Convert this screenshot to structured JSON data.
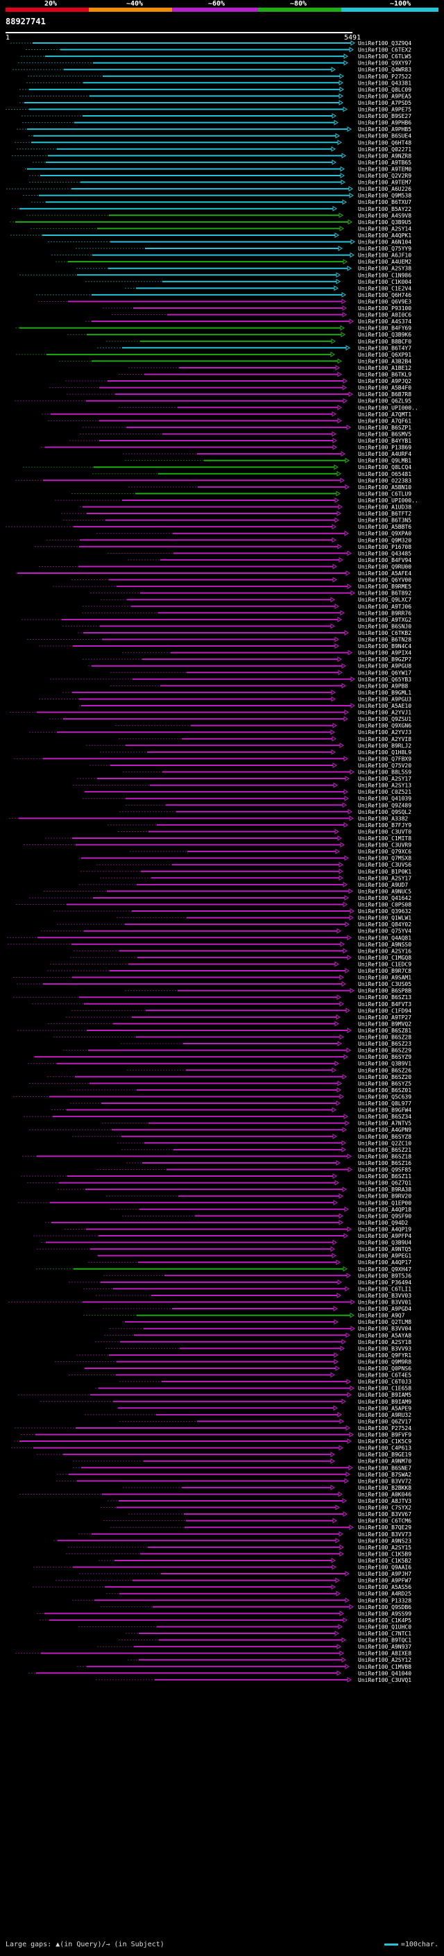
{
  "header": {
    "scale_labels": [
      "20%",
      "~40%",
      "~60%",
      "~80%",
      "~100%"
    ],
    "scale_colors": [
      "#e0001a",
      "#f28e00",
      "#b520cc",
      "#1fae12",
      "#23c4d8"
    ],
    "sequence_id": "88927741",
    "axis_start": "1",
    "axis_end": "5491"
  },
  "colors": {
    "cyan": "#23c4d8",
    "green": "#1fae12",
    "magenta": "#c21cc4",
    "red": "#e0001a",
    "axis": "#ffffff"
  },
  "legend": {
    "text": "Large gaps: ▲(in Query)/→ (in Subject)",
    "scale_text": "=100char."
  },
  "hits": [
    {
      "label": "UniRef100_Q3Z9Q4",
      "color": "cyan"
    },
    {
      "label": "UniRef100_C6TEX2",
      "color": "cyan"
    },
    {
      "label": "UniRef100_C6TLW5",
      "color": "cyan"
    },
    {
      "label": "UniRef100_Q9XY97",
      "color": "cyan"
    },
    {
      "label": "UniRef100_Q4WR83",
      "color": "cyan"
    },
    {
      "label": "UniRef100_P27522",
      "color": "cyan"
    },
    {
      "label": "UniRef100_Q43381",
      "color": "cyan"
    },
    {
      "label": "UniRef100_Q8LC09",
      "color": "cyan"
    },
    {
      "label": "UniRef100_A9PEA5",
      "color": "cyan"
    },
    {
      "label": "UniRef100_A7PSD5",
      "color": "cyan"
    },
    {
      "label": "UniRef100_A9PE75",
      "color": "cyan"
    },
    {
      "label": "UniRef100_B9SE27",
      "color": "cyan"
    },
    {
      "label": "UniRef100_A9PHB6",
      "color": "cyan"
    },
    {
      "label": "UniRef100_A9PHB5",
      "color": "cyan"
    },
    {
      "label": "UniRef100_B6SUE4",
      "color": "cyan"
    },
    {
      "label": "UniRef100_Q6HT48",
      "color": "cyan"
    },
    {
      "label": "UniRef100_Q02271",
      "color": "cyan"
    },
    {
      "label": "UniRef100_A9NZR8",
      "color": "cyan"
    },
    {
      "label": "UniRef100_A9TB65",
      "color": "cyan"
    },
    {
      "label": "UniRef100_A9TEM0",
      "color": "cyan"
    },
    {
      "label": "UniRef100_Q2V2R9",
      "color": "cyan"
    },
    {
      "label": "UniRef100_A9TEM7",
      "color": "cyan"
    },
    {
      "label": "UniRef100_A6U226",
      "color": "cyan"
    },
    {
      "label": "UniRef100_Q9M538",
      "color": "cyan"
    },
    {
      "label": "UniRef100_B6TXU7",
      "color": "cyan"
    },
    {
      "label": "UniRef100_B5AY22",
      "color": "cyan"
    },
    {
      "label": "UniRef100_A4S9V8",
      "color": "green"
    },
    {
      "label": "UniRef100_Q3B9U5",
      "color": "green"
    },
    {
      "label": "UniRef100_A2SY14",
      "color": "green"
    },
    {
      "label": "UniRef100_A4QPK1",
      "color": "cyan"
    },
    {
      "label": "UniRef100_A6N104",
      "color": "cyan"
    },
    {
      "label": "UniRef100_Q75YY9",
      "color": "cyan"
    },
    {
      "label": "UniRef100_A6JF10",
      "color": "cyan"
    },
    {
      "label": "UniRef100_A4UEM2",
      "color": "green"
    },
    {
      "label": "UniRef100_A2SY38",
      "color": "cyan"
    },
    {
      "label": "UniRef100_C1N986",
      "color": "cyan"
    },
    {
      "label": "UniRef100_C1K004",
      "color": "cyan"
    },
    {
      "label": "UniRef100_C1E2V4",
      "color": "cyan"
    },
    {
      "label": "UniRef100_Q6H746",
      "color": "cyan"
    },
    {
      "label": "UniRef100_Q6V9E3",
      "color": "magenta"
    },
    {
      "label": "UniRef100_P93100",
      "color": "magenta"
    },
    {
      "label": "UniRef100_A0I0C6",
      "color": "magenta"
    },
    {
      "label": "UniRef100_A4S374",
      "color": "magenta"
    },
    {
      "label": "UniRef100_B4FY69",
      "color": "green"
    },
    {
      "label": "UniRef100_Q3B9K6",
      "color": "green"
    },
    {
      "label": "UniRef100_B8BCF0",
      "color": "green"
    },
    {
      "label": "UniRef100_B6T4Y7",
      "color": "cyan"
    },
    {
      "label": "UniRef100_Q6XP91",
      "color": "green"
    },
    {
      "label": "UniRef100_A3B2B4",
      "color": "green"
    },
    {
      "label": "UniRef100_A1BE12",
      "color": "magenta"
    },
    {
      "label": "UniRef100_B6TKL9",
      "color": "magenta"
    },
    {
      "label": "UniRef100_A9PJQ2",
      "color": "magenta"
    },
    {
      "label": "UniRef100_A5B4F0",
      "color": "magenta"
    },
    {
      "label": "UniRef100_B6B7R8",
      "color": "magenta"
    },
    {
      "label": "UniRef100_Q6ZL95",
      "color": "magenta"
    },
    {
      "label": "UniRef100_UPI000..",
      "color": "magenta"
    },
    {
      "label": "UniRef100_A7QMT1",
      "color": "magenta"
    },
    {
      "label": "UniRef100_A7QF61",
      "color": "magenta"
    },
    {
      "label": "UniRef100_B6SZP1",
      "color": "magenta"
    },
    {
      "label": "UniRef100_B6SMV5",
      "color": "magenta"
    },
    {
      "label": "UniRef100_B4YYB1",
      "color": "magenta"
    },
    {
      "label": "UniRef100_P13869",
      "color": "magenta"
    },
    {
      "label": "UniRef100_A4URF4",
      "color": "magenta"
    },
    {
      "label": "UniRef100_Q9LMB1",
      "color": "green"
    },
    {
      "label": "UniRef100_Q8LCQ4",
      "color": "green"
    },
    {
      "label": "UniRef100_O65481",
      "color": "green"
    },
    {
      "label": "UniRef100_O22383",
      "color": "magenta"
    },
    {
      "label": "UniRef100_A5BN10",
      "color": "magenta"
    },
    {
      "label": "UniRef100_C6TLU9",
      "color": "green"
    },
    {
      "label": "UniRef100_UPI000..",
      "color": "magenta"
    },
    {
      "label": "UniRef100_A1UD38",
      "color": "magenta"
    },
    {
      "label": "UniRef100_B6TFT2",
      "color": "magenta"
    },
    {
      "label": "UniRef100_B6T3N5",
      "color": "magenta"
    },
    {
      "label": "UniRef100_A5BBT6",
      "color": "magenta"
    },
    {
      "label": "UniRef100_Q9XPA0",
      "color": "magenta"
    },
    {
      "label": "UniRef100_Q9M320",
      "color": "magenta"
    },
    {
      "label": "UniRef100_P16708",
      "color": "magenta"
    },
    {
      "label": "UniRef100_Q43485",
      "color": "magenta"
    },
    {
      "label": "UniRef100_B4FV94",
      "color": "magenta"
    },
    {
      "label": "UniRef100_Q9RU00",
      "color": "magenta"
    },
    {
      "label": "UniRef100_A5AFE4",
      "color": "magenta"
    },
    {
      "label": "UniRef100_Q6YV00",
      "color": "magenta"
    },
    {
      "label": "UniRef100_B9RME5",
      "color": "magenta"
    },
    {
      "label": "UniRef100_B6T892",
      "color": "magenta"
    },
    {
      "label": "UniRef100_Q9LXC7",
      "color": "magenta"
    },
    {
      "label": "UniRef100_A9TJ06",
      "color": "magenta"
    },
    {
      "label": "UniRef100_B9RR76",
      "color": "magenta"
    },
    {
      "label": "UniRef100_A9TXG2",
      "color": "magenta"
    },
    {
      "label": "UniRef100_B6SNJ0",
      "color": "magenta"
    },
    {
      "label": "UniRef100_C6TKB2",
      "color": "magenta"
    },
    {
      "label": "UniRef100_B6TN28",
      "color": "magenta"
    },
    {
      "label": "UniRef100_B9N4C4",
      "color": "magenta"
    },
    {
      "label": "UniRef100_A9PIX4",
      "color": "magenta"
    },
    {
      "label": "UniRef100_B9GZP7",
      "color": "magenta"
    },
    {
      "label": "UniRef100_A9PGU8",
      "color": "magenta"
    },
    {
      "label": "UniRef100_Q6YW17",
      "color": "magenta"
    },
    {
      "label": "UniRef100_Q65YB3",
      "color": "magenta"
    },
    {
      "label": "UniRef100_A9PB8",
      "color": "magenta"
    },
    {
      "label": "UniRef100_B9GML1",
      "color": "magenta"
    },
    {
      "label": "UniRef100_A9PGU3",
      "color": "magenta"
    },
    {
      "label": "UniRef100_A5AE10",
      "color": "magenta"
    },
    {
      "label": "UniRef100_A2YVJ1",
      "color": "magenta"
    },
    {
      "label": "UniRef100_Q9ZSU1",
      "color": "magenta"
    },
    {
      "label": "UniRef100_Q9XGN6",
      "color": "magenta"
    },
    {
      "label": "UniRef100_A2YVJ3",
      "color": "magenta"
    },
    {
      "label": "UniRef100_A2YVI8",
      "color": "magenta"
    },
    {
      "label": "UniRef100_B9RLJ2",
      "color": "magenta"
    },
    {
      "label": "UniRef100_Q1H8L9",
      "color": "magenta"
    },
    {
      "label": "UniRef100_Q7FBX9",
      "color": "magenta"
    },
    {
      "label": "UniRef100_Q75V20",
      "color": "magenta"
    },
    {
      "label": "UniRef100_B8L5S9",
      "color": "magenta"
    },
    {
      "label": "UniRef100_A2SY17",
      "color": "magenta"
    },
    {
      "label": "UniRef100_A2SY13",
      "color": "magenta"
    },
    {
      "label": "UniRef100_C0Z521",
      "color": "magenta"
    },
    {
      "label": "UniRef100_Q41039",
      "color": "magenta"
    },
    {
      "label": "UniRef100_Q9Z489",
      "color": "magenta"
    },
    {
      "label": "UniRef100_Q9SQL2",
      "color": "magenta"
    },
    {
      "label": "UniRef100_A3382",
      "color": "magenta"
    },
    {
      "label": "UniRef100_B7FJY9",
      "color": "magenta"
    },
    {
      "label": "UniRef100_C3UVT0",
      "color": "magenta"
    },
    {
      "label": "UniRef100_C1MIT8",
      "color": "magenta"
    },
    {
      "label": "UniRef100_C3UVR9",
      "color": "magenta"
    },
    {
      "label": "UniRef100_Q79XC6",
      "color": "magenta"
    },
    {
      "label": "UniRef100_Q7MSX8",
      "color": "magenta"
    },
    {
      "label": "UniRef100_C3UVS6",
      "color": "magenta"
    },
    {
      "label": "UniRef100_B1P0K1",
      "color": "magenta"
    },
    {
      "label": "UniRef100_A2SY17",
      "color": "magenta"
    },
    {
      "label": "UniRef100_A9UD7",
      "color": "magenta"
    },
    {
      "label": "UniRef100_A9NUC5",
      "color": "magenta"
    },
    {
      "label": "UniRef100_Q41642",
      "color": "magenta"
    },
    {
      "label": "UniRef100_C0PS08",
      "color": "magenta"
    },
    {
      "label": "UniRef100_Q39632",
      "color": "magenta"
    },
    {
      "label": "UniRef100_Q1WLW1",
      "color": "magenta"
    },
    {
      "label": "UniRef100_Q84Y02",
      "color": "magenta"
    },
    {
      "label": "UniRef100_Q75YV4",
      "color": "magenta"
    },
    {
      "label": "UniRef100_Q4AQ81",
      "color": "magenta"
    },
    {
      "label": "UniRef100_A9NSS0",
      "color": "magenta"
    },
    {
      "label": "UniRef100_A2SY16",
      "color": "magenta"
    },
    {
      "label": "UniRef100_C1MGQ8",
      "color": "magenta"
    },
    {
      "label": "UniRef100_C1EDC9",
      "color": "magenta"
    },
    {
      "label": "UniRef100_B9R7C8",
      "color": "magenta"
    },
    {
      "label": "UniRef100_A9SAM1",
      "color": "magenta"
    },
    {
      "label": "UniRef100_C3US05",
      "color": "magenta"
    },
    {
      "label": "UniRef100_B6SP8B",
      "color": "magenta"
    },
    {
      "label": "UniRef100_B6SZ13",
      "color": "magenta"
    },
    {
      "label": "UniRef100_B4FVT3",
      "color": "magenta"
    },
    {
      "label": "UniRef100_C1FD94",
      "color": "magenta"
    },
    {
      "label": "UniRef100_A9TP27",
      "color": "magenta"
    },
    {
      "label": "UniRef100_B9MVQ2",
      "color": "magenta"
    },
    {
      "label": "UniRef100_B6SZ81",
      "color": "magenta"
    },
    {
      "label": "UniRef100_B6SZ28",
      "color": "magenta"
    },
    {
      "label": "UniRef100_B6SZ23",
      "color": "magenta"
    },
    {
      "label": "UniRef100_B6SZ29",
      "color": "magenta"
    },
    {
      "label": "UniRef100_B6SYZ9",
      "color": "magenta"
    },
    {
      "label": "UniRef100_Q3B9V1",
      "color": "magenta"
    },
    {
      "label": "UniRef100_B6SZ26",
      "color": "magenta"
    },
    {
      "label": "UniRef100_B6SZ20",
      "color": "magenta"
    },
    {
      "label": "UniRef100_B6SYZ5",
      "color": "magenta"
    },
    {
      "label": "UniRef100_B6SZ01",
      "color": "magenta"
    },
    {
      "label": "UniRef100_Q5C639",
      "color": "magenta"
    },
    {
      "label": "UniRef100_Q8L977",
      "color": "magenta"
    },
    {
      "label": "UniRef100_B9GFW4",
      "color": "magenta"
    },
    {
      "label": "UniRef100_B6SZ34",
      "color": "magenta"
    },
    {
      "label": "UniRef100_A7NTV5",
      "color": "magenta"
    },
    {
      "label": "UniRef100_A4GPN9",
      "color": "magenta"
    },
    {
      "label": "UniRef100_B6SYZ8",
      "color": "magenta"
    },
    {
      "label": "UniRef100_Q2ZC10",
      "color": "magenta"
    },
    {
      "label": "UniRef100_B6SZ21",
      "color": "magenta"
    },
    {
      "label": "UniRef100_B6SZ18",
      "color": "magenta"
    },
    {
      "label": "UniRef100_B6SZ16",
      "color": "magenta"
    },
    {
      "label": "UniRef100_Q9SF85",
      "color": "magenta"
    },
    {
      "label": "UniRef100_B6SZ11",
      "color": "magenta"
    },
    {
      "label": "UniRef100_Q6Z7Q1",
      "color": "magenta"
    },
    {
      "label": "UniRef100_B9RA38",
      "color": "magenta"
    },
    {
      "label": "UniRef100_B9RV20",
      "color": "magenta"
    },
    {
      "label": "UniRef100_Q1EP00",
      "color": "magenta"
    },
    {
      "label": "UniRef100_A4QP18",
      "color": "magenta"
    },
    {
      "label": "UniRef100_Q9SF90",
      "color": "magenta"
    },
    {
      "label": "UniRef100_Q94D2",
      "color": "magenta"
    },
    {
      "label": "UniRef100_A4QP19",
      "color": "magenta"
    },
    {
      "label": "UniRef100_A9PFP4",
      "color": "magenta"
    },
    {
      "label": "UniRef100_Q3B9U4",
      "color": "magenta"
    },
    {
      "label": "UniRef100_A9NTQ5",
      "color": "magenta"
    },
    {
      "label": "UniRef100_A9PEG1",
      "color": "magenta"
    },
    {
      "label": "UniRef100_A4QP17",
      "color": "magenta"
    },
    {
      "label": "UniRef100_Q9XH47",
      "color": "green"
    },
    {
      "label": "UniRef100_B9T5J6",
      "color": "magenta"
    },
    {
      "label": "UniRef100_P36494",
      "color": "magenta"
    },
    {
      "label": "UniRef100_C6TLI1",
      "color": "magenta"
    },
    {
      "label": "UniRef100_B3VV03",
      "color": "magenta"
    },
    {
      "label": "UniRef100_B3VV01",
      "color": "magenta"
    },
    {
      "label": "UniRef100_A9PGD4",
      "color": "magenta"
    },
    {
      "label": "UniRef100_A9Q7",
      "color": "green"
    },
    {
      "label": "UniRef100_Q2TLM8",
      "color": "magenta"
    },
    {
      "label": "UniRef100_B3VV04",
      "color": "magenta"
    },
    {
      "label": "UniRef100_A5AYA8",
      "color": "magenta"
    },
    {
      "label": "UniRef100_A2SY18",
      "color": "magenta"
    },
    {
      "label": "UniRef100_B3VV93",
      "color": "magenta"
    },
    {
      "label": "UniRef100_Q9FYR1",
      "color": "magenta"
    },
    {
      "label": "UniRef100_Q9M9R8",
      "color": "magenta"
    },
    {
      "label": "UniRef100_Q0PNS6",
      "color": "magenta"
    },
    {
      "label": "UniRef100_C6T4E5",
      "color": "magenta"
    },
    {
      "label": "UniRef100_C6T0J3",
      "color": "magenta"
    },
    {
      "label": "UniRef100_C1E658",
      "color": "magenta"
    },
    {
      "label": "UniRef100_B9IAM5",
      "color": "magenta"
    },
    {
      "label": "UniRef100_B9IAM9",
      "color": "magenta"
    },
    {
      "label": "UniRef100_A5APE9",
      "color": "magenta"
    },
    {
      "label": "UniRef100_A9RU32",
      "color": "magenta"
    },
    {
      "label": "UniRef100_Q6ZV17",
      "color": "magenta"
    },
    {
      "label": "UniRef100_P27524",
      "color": "magenta"
    },
    {
      "label": "UniRef100_B9FVF9",
      "color": "magenta"
    },
    {
      "label": "UniRef100_C1K5C9",
      "color": "magenta"
    },
    {
      "label": "UniRef100_C4P613",
      "color": "magenta"
    },
    {
      "label": "UniRef100_B9GE19",
      "color": "magenta"
    },
    {
      "label": "UniRef100_A9NM70",
      "color": "magenta"
    },
    {
      "label": "UniRef100_B6SNE7",
      "color": "magenta"
    },
    {
      "label": "UniRef100_B7SWA2",
      "color": "magenta"
    },
    {
      "label": "UniRef100_B3VV72",
      "color": "magenta"
    },
    {
      "label": "UniRef100_B2BKK8",
      "color": "magenta"
    },
    {
      "label": "UniRef100_A0K046",
      "color": "magenta"
    },
    {
      "label": "UniRef100_A8JTV3",
      "color": "magenta"
    },
    {
      "label": "UniRef100_C7SYX2",
      "color": "magenta"
    },
    {
      "label": "UniRef100_B3VV67",
      "color": "magenta"
    },
    {
      "label": "UniRef100_C6TCM6",
      "color": "magenta"
    },
    {
      "label": "UniRef100_B7QE29",
      "color": "magenta"
    },
    {
      "label": "UniRef100_B3VV73",
      "color": "magenta"
    },
    {
      "label": "UniRef100_A9NS23",
      "color": "magenta"
    },
    {
      "label": "UniRef100_A2SY15",
      "color": "magenta"
    },
    {
      "label": "UniRef100_C1K5B9",
      "color": "magenta"
    },
    {
      "label": "UniRef100_C1K5B2",
      "color": "magenta"
    },
    {
      "label": "UniRef100_Q9AAI6",
      "color": "magenta"
    },
    {
      "label": "UniRef100_A9PJH7",
      "color": "magenta"
    },
    {
      "label": "UniRef100_A9PFW7",
      "color": "magenta"
    },
    {
      "label": "UniRef100_A5AS56",
      "color": "magenta"
    },
    {
      "label": "UniRef100_A4RD25",
      "color": "magenta"
    },
    {
      "label": "UniRef100_P13328",
      "color": "magenta"
    },
    {
      "label": "UniRef100_Q9SDB6",
      "color": "magenta"
    },
    {
      "label": "UniRef100_A9SS99",
      "color": "magenta"
    },
    {
      "label": "UniRef100_C1K4P5",
      "color": "magenta"
    },
    {
      "label": "UniRef100_Q1UHC0",
      "color": "magenta"
    },
    {
      "label": "UniRef100_C7NTC1",
      "color": "magenta"
    },
    {
      "label": "UniRef100_B9TQC1",
      "color": "magenta"
    },
    {
      "label": "UniRef100_A9N937",
      "color": "magenta"
    },
    {
      "label": "UniRef100_A8IXE8",
      "color": "magenta"
    },
    {
      "label": "UniRef100_A2SY12",
      "color": "magenta"
    },
    {
      "label": "UniRef100_C1MVB8",
      "color": "magenta"
    },
    {
      "label": "UniRef100_Q41040",
      "color": "magenta"
    },
    {
      "label": "UniRef100_C3UVQ1",
      "color": "magenta"
    }
  ]
}
